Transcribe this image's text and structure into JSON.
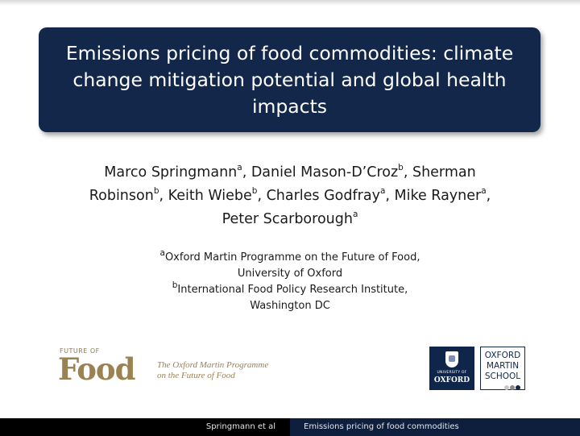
{
  "slide": {
    "title": "Emissions pricing of food commodities: climate change mitigation potential and global health impacts",
    "authors": [
      {
        "name": "Marco Springmann",
        "sup": "a",
        "sep": ", "
      },
      {
        "name": "Daniel Mason-D’Croz",
        "sup": "b",
        "sep": ", "
      },
      {
        "name": "Sherman Robinson",
        "sup": "b",
        "sep": ", "
      },
      {
        "name": "Keith Wiebe",
        "sup": "b",
        "sep": ", "
      },
      {
        "name": "Charles Godfray",
        "sup": "a",
        "sep": ", "
      },
      {
        "name": "Mike Rayner",
        "sup": "a",
        "sep": ","
      },
      {
        "name": "Peter Scarborough",
        "sup": "a",
        "sep": ""
      }
    ],
    "author_line1": [
      "Marco Springmann",
      "a",
      ", Daniel Mason-D’Croz",
      "b",
      ", Sherman"
    ],
    "author_line2": [
      "Robinson",
      "b",
      ", Keith Wiebe",
      "b",
      ", Charles Godfray",
      "a",
      ", Mike Rayner",
      "a",
      ","
    ],
    "author_line3": [
      "Peter Scarborough",
      "a"
    ],
    "affiliations": {
      "a_sup": "a",
      "a_line1": "Oxford Martin Programme on the Future of Food,",
      "a_line2": "University of Oxford",
      "b_sup": "b",
      "b_line1": "International Food Policy Research Institute,",
      "b_line2": "Washington DC"
    }
  },
  "logos": {
    "future_of_food": {
      "small_text": "FUTURE OF",
      "big_text": "Food",
      "tagline_1": "The Oxford Martin Programme",
      "tagline_2": "on the Future of Food",
      "color": "#9b8251"
    },
    "university_of_oxford": {
      "small_text": "UNIVERSITY OF",
      "word": "OXFORD",
      "color": "#0f2549"
    },
    "oxford_martin_school": {
      "line1": "OXFORD",
      "line2": "MARTIN",
      "line3": "SCHOOL",
      "dot_colors": [
        "#c9c9c9",
        "#8a8a8a",
        "#12274a"
      ]
    }
  },
  "footer": {
    "left": "Springmann et al",
    "right": "Emissions pricing of food commodities"
  },
  "colors": {
    "title_bg": "#12274a",
    "footer_bg": "#000000",
    "footer_right_bg": "#0d1f3d"
  }
}
